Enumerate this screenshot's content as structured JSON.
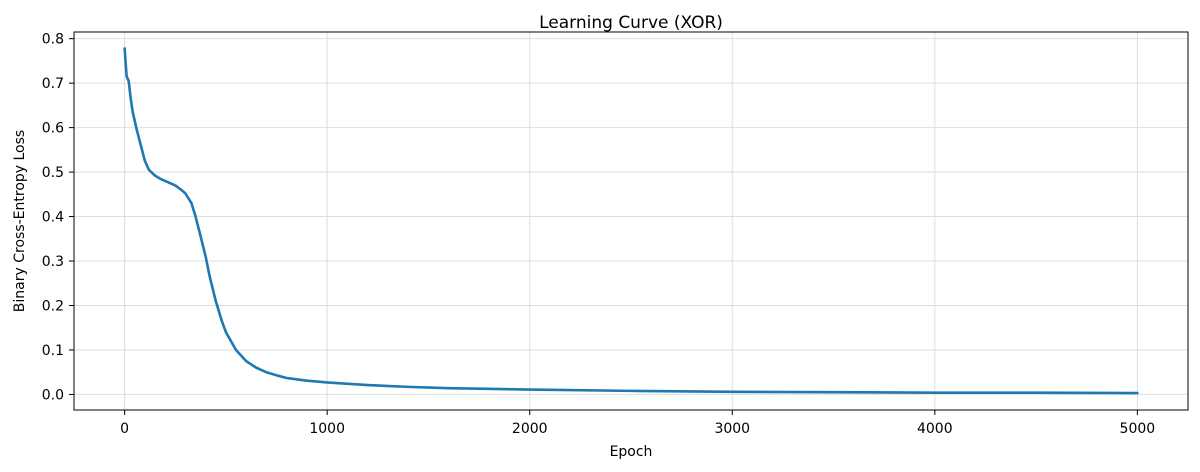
{
  "chart_data": {
    "type": "line",
    "title": "Learning Curve (XOR)",
    "xlabel": "Epoch",
    "ylabel": "Binary Cross-Entropy Loss",
    "xlim": [
      -250,
      5250
    ],
    "ylim": [
      -0.035,
      0.815
    ],
    "xticks": [
      0,
      1000,
      2000,
      3000,
      4000,
      5000
    ],
    "yticks": [
      0.0,
      0.1,
      0.2,
      0.3,
      0.4,
      0.5,
      0.6,
      0.7,
      0.8
    ],
    "ytick_labels": [
      "0.0",
      "0.1",
      "0.2",
      "0.3",
      "0.4",
      "0.5",
      "0.6",
      "0.7",
      "0.8"
    ],
    "grid": true,
    "line_color": "#1f77b4",
    "series": [
      {
        "x": [
          0,
          5,
          10,
          20,
          30,
          40,
          50,
          60,
          80,
          100,
          120,
          150,
          180,
          200,
          250,
          280,
          300,
          330,
          350,
          370,
          400,
          420,
          450,
          480,
          500,
          550,
          600,
          650,
          700,
          750,
          800,
          900,
          1000,
          1200,
          1400,
          1600,
          2000,
          2500,
          3000,
          3500,
          4000,
          4500,
          5000
        ],
        "y": [
          0.778,
          0.745,
          0.715,
          0.705,
          0.665,
          0.635,
          0.615,
          0.595,
          0.56,
          0.525,
          0.505,
          0.492,
          0.484,
          0.48,
          0.47,
          0.46,
          0.452,
          0.43,
          0.4,
          0.365,
          0.31,
          0.265,
          0.21,
          0.165,
          0.14,
          0.1,
          0.075,
          0.06,
          0.05,
          0.043,
          0.037,
          0.031,
          0.027,
          0.021,
          0.017,
          0.014,
          0.011,
          0.008,
          0.006,
          0.005,
          0.004,
          0.004,
          0.003
        ]
      }
    ]
  }
}
